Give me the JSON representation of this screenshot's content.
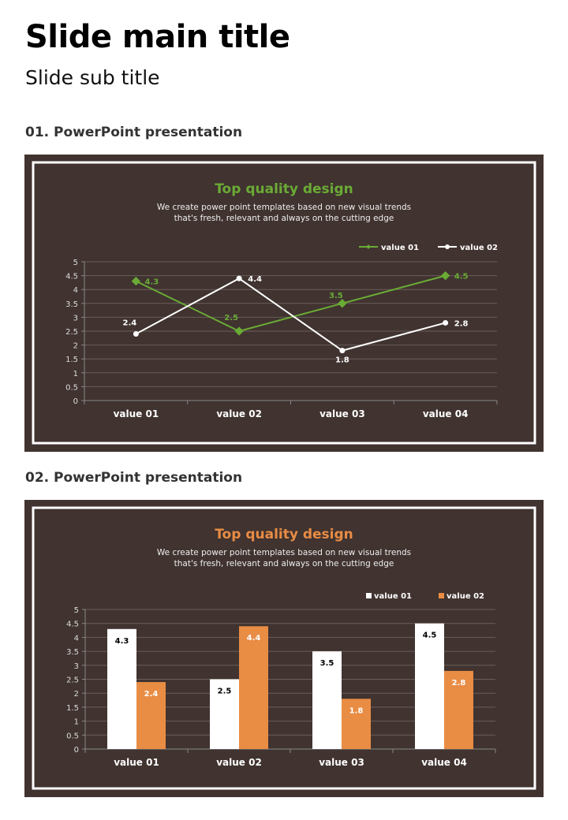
{
  "header": {
    "title": "Slide main title",
    "subtitle": "Slide sub title"
  },
  "sections": [
    {
      "heading": "01. PowerPoint presentation"
    },
    {
      "heading": "02. PowerPoint presentation"
    }
  ],
  "colors": {
    "panel": "#403330",
    "green": "#6aab35",
    "orange": "#e98c44",
    "white": "#ffffff"
  },
  "chart_data": [
    {
      "type": "line",
      "title": "Top quality design",
      "subtitle": [
        "We create power point templates based on new visual trends",
        "that's fresh, relevant and always on the cutting edge"
      ],
      "categories": [
        "value 01",
        "value 02",
        "value 03",
        "value 04"
      ],
      "series": [
        {
          "name": "value 01",
          "values": [
            4.3,
            2.5,
            3.5,
            4.5
          ],
          "color": "#6aab35",
          "marker": "diamond"
        },
        {
          "name": "value 02",
          "values": [
            2.4,
            4.4,
            1.8,
            2.8
          ],
          "color": "#ffffff",
          "marker": "circle"
        }
      ],
      "ylim": [
        0,
        5
      ],
      "yticks": [
        "0",
        "0.5",
        "1",
        "1.5",
        "2",
        "2.5",
        "3",
        "3.5",
        "4",
        "4.5",
        "5"
      ],
      "grid": true,
      "legend": "top-right",
      "title_color": "#6aab35"
    },
    {
      "type": "bar",
      "title": "Top quality design",
      "subtitle": [
        "We create power point templates based on new visual trends",
        "that's fresh, relevant and always on the cutting edge"
      ],
      "categories": [
        "value 01",
        "value 02",
        "value 03",
        "value 04"
      ],
      "series": [
        {
          "name": "value 01",
          "values": [
            4.3,
            2.5,
            3.5,
            4.5
          ],
          "color": "#ffffff",
          "label_color": "#000000"
        },
        {
          "name": "value 02",
          "values": [
            2.4,
            4.4,
            1.8,
            2.8
          ],
          "color": "#e98c44",
          "label_color": "#ffffff"
        }
      ],
      "ylim": [
        0,
        5
      ],
      "yticks": [
        "0",
        "0.5",
        "1",
        "1.5",
        "2",
        "2.5",
        "3",
        "3.5",
        "4",
        "4.5",
        "5"
      ],
      "grid": true,
      "legend": "top-right",
      "title_color": "#e98c44"
    }
  ]
}
